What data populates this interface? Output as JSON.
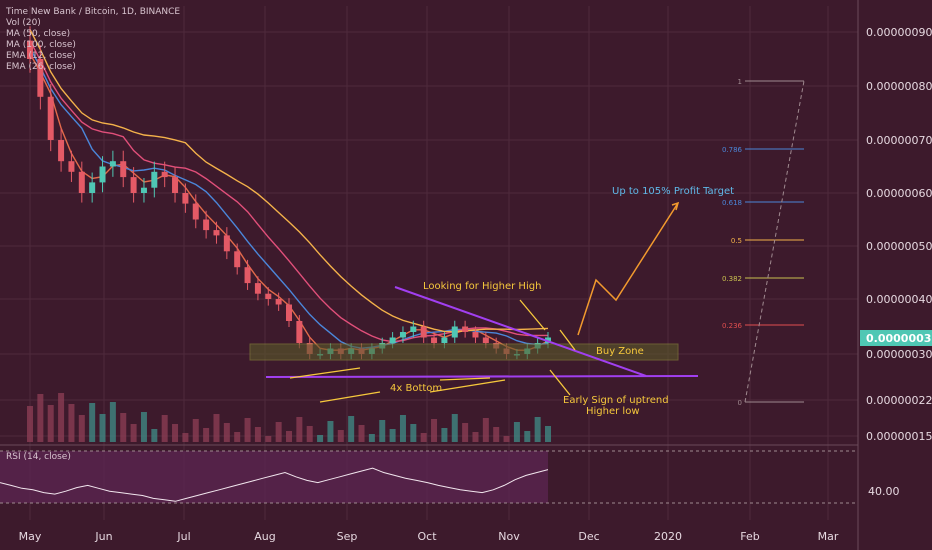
{
  "colors": {
    "background": "#3d1a2c",
    "grid": "#4e2a3c",
    "candle_up": "#4fc7b4",
    "candle_down": "#e45a66",
    "ma50": "#e14f7a",
    "ma100": "#f4b24a",
    "ema12": "#e36a4a",
    "ema26": "#4b86d9",
    "trendline": "#a13ff0",
    "annotation": "#f6c83c",
    "arrow_orange": "#f29a2e",
    "buy_zone_fill": "#5a5a2a",
    "rsi_band": "#5a2450",
    "rsi_line": "#f2e6ee",
    "current_price_bg": "#4fc7b4",
    "target_text": "#5fb8e8"
  },
  "chart_data": {
    "type": "candlestick",
    "title": "Time New Bank / Bitcoin, 1D, BINANCE",
    "indicators": [
      "Vol (20)",
      "MA (50, close)",
      "MA (100, close)",
      "EMA (12, close)",
      "EMA (26, close)"
    ],
    "x_tick_labels": [
      "May",
      "Jun",
      "Jul",
      "Aug",
      "Sep",
      "Oct",
      "Nov",
      "Dec",
      "2020",
      "Feb",
      "Mar"
    ],
    "y_tick_labels": [
      "0.00000090",
      "0.00000080",
      "0.00000070",
      "0.00000060",
      "0.00000050",
      "0.00000040",
      "0.00000030",
      "0.00000022",
      "0.00000015"
    ],
    "current_price": "0.00000033",
    "ohlc_close": [
      8.5e-07,
      7.8e-07,
      7e-07,
      6.6e-07,
      6.4e-07,
      6e-07,
      6.2e-07,
      6.5e-07,
      6.6e-07,
      6.3e-07,
      6e-07,
      6.1e-07,
      6.4e-07,
      6.3e-07,
      6e-07,
      5.8e-07,
      5.5e-07,
      5.3e-07,
      5.2e-07,
      4.9e-07,
      4.6e-07,
      4.3e-07,
      4.1e-07,
      4e-07,
      3.9e-07,
      3.6e-07,
      3.2e-07,
      3e-07,
      3e-07,
      3.1e-07,
      3e-07,
      3.1e-07,
      3e-07,
      3.1e-07,
      3.2e-07,
      3.3e-07,
      3.4e-07,
      3.5e-07,
      3.3e-07,
      3.2e-07,
      3.3e-07,
      3.5e-07,
      3.4e-07,
      3.3e-07,
      3.2e-07,
      3.1e-07,
      3e-07,
      3e-07,
      3.1e-07,
      3.2e-07,
      3.3e-07
    ],
    "fibonacci_levels": [
      "1",
      "0.786",
      "0.618",
      "0.5",
      "0.382",
      "0.236",
      "0"
    ],
    "rsi": {
      "label": "RSI (14, close)",
      "tick_label": "40.00",
      "values": [
        52,
        48,
        44,
        42,
        38,
        36,
        40,
        45,
        48,
        44,
        40,
        38,
        36,
        34,
        30,
        28,
        26,
        30,
        34,
        38,
        42,
        46,
        50,
        54,
        58,
        62,
        66,
        60,
        55,
        52,
        56,
        60,
        64,
        68,
        72,
        66,
        62,
        58,
        55,
        52,
        48,
        45,
        42,
        40,
        38,
        42,
        48,
        56,
        62,
        66,
        70
      ]
    }
  },
  "annotations": {
    "higher_high": "Looking for Higher High",
    "buy_zone": "Buy Zone",
    "four_bottom": "4x Bottom",
    "early_sign_line1": "Early Sign of uptrend",
    "early_sign_line2": "Higher low",
    "profit_target": "Up to 105% Profit Target"
  }
}
